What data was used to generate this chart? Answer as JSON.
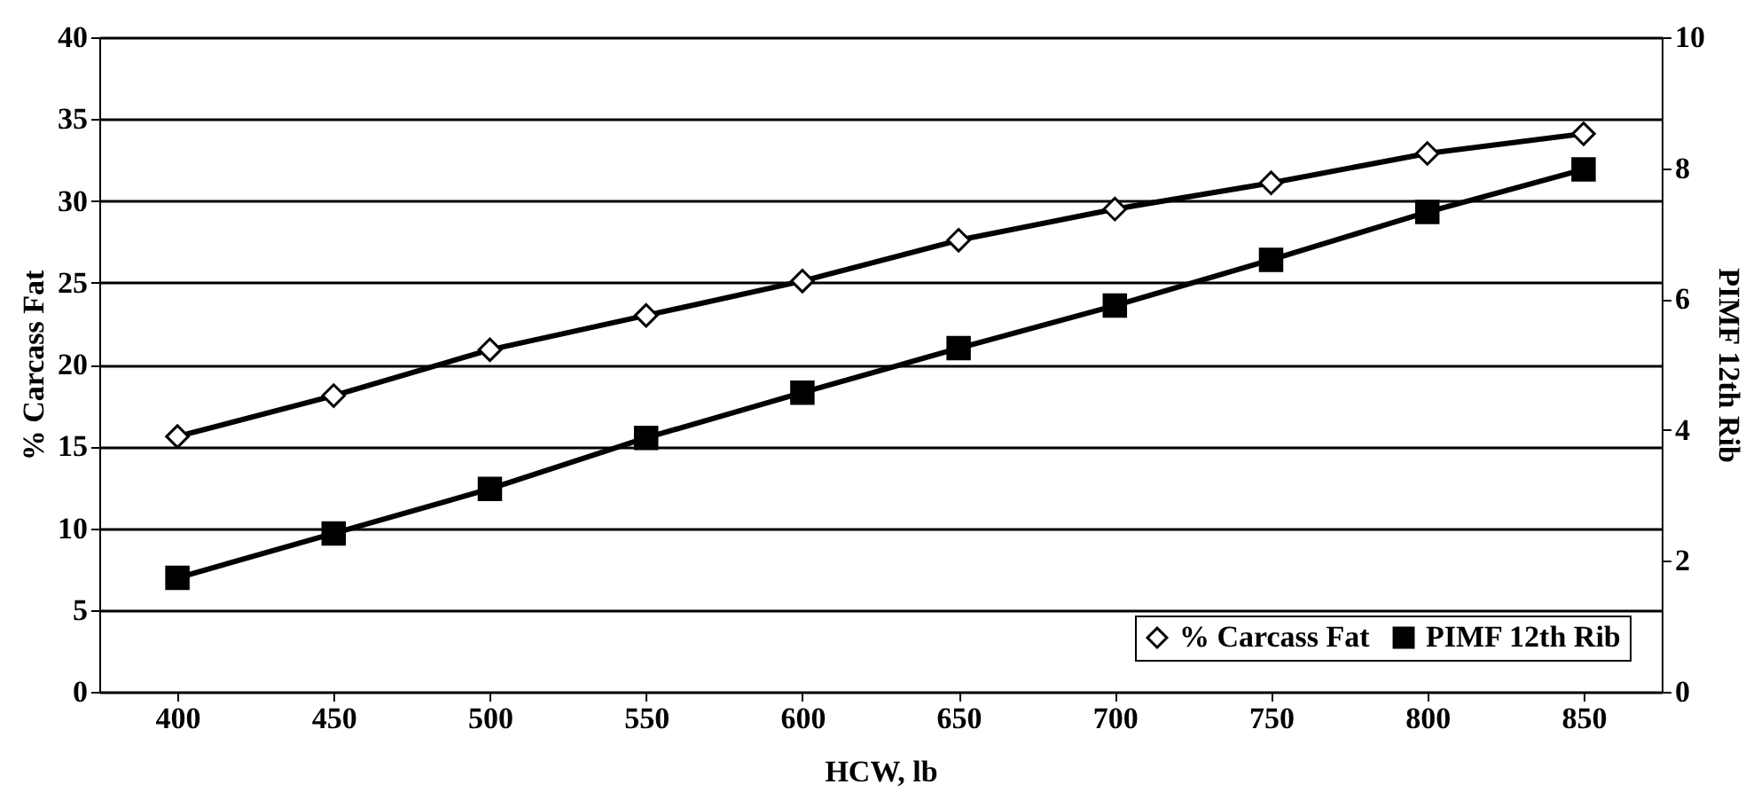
{
  "chart_data": {
    "type": "line",
    "xlabel": "HCW, lb",
    "ylabel": "% Carcass Fat",
    "y2label": "PIMF 12th Rib",
    "categories": [
      "400",
      "450",
      "500",
      "550",
      "600",
      "650",
      "700",
      "750",
      "800",
      "850"
    ],
    "series": [
      {
        "name": "% Carcass Fat",
        "color": "#000000",
        "marker": "diamond",
        "values": [
          15.6,
          18.1,
          20.9,
          23.0,
          25.1,
          27.6,
          29.5,
          31.1,
          32.9,
          34.1
        ]
      },
      {
        "name": "PIMF 12th Rib",
        "color": "#000000",
        "marker": "square",
        "axis": "y2",
        "values": [
          1.74,
          2.42,
          3.1,
          3.88,
          4.57,
          5.25,
          5.9,
          6.6,
          7.33,
          7.98
        ]
      }
    ],
    "ylim": [
      0,
      40
    ],
    "yticks": [
      0,
      5,
      10,
      15,
      20,
      25,
      30,
      35,
      40
    ],
    "y2lim": [
      0,
      10
    ],
    "y2ticks": [
      0,
      2,
      4,
      6,
      8,
      10
    ],
    "grid": "y",
    "legend": "bottom right",
    "line_style": "solid"
  }
}
